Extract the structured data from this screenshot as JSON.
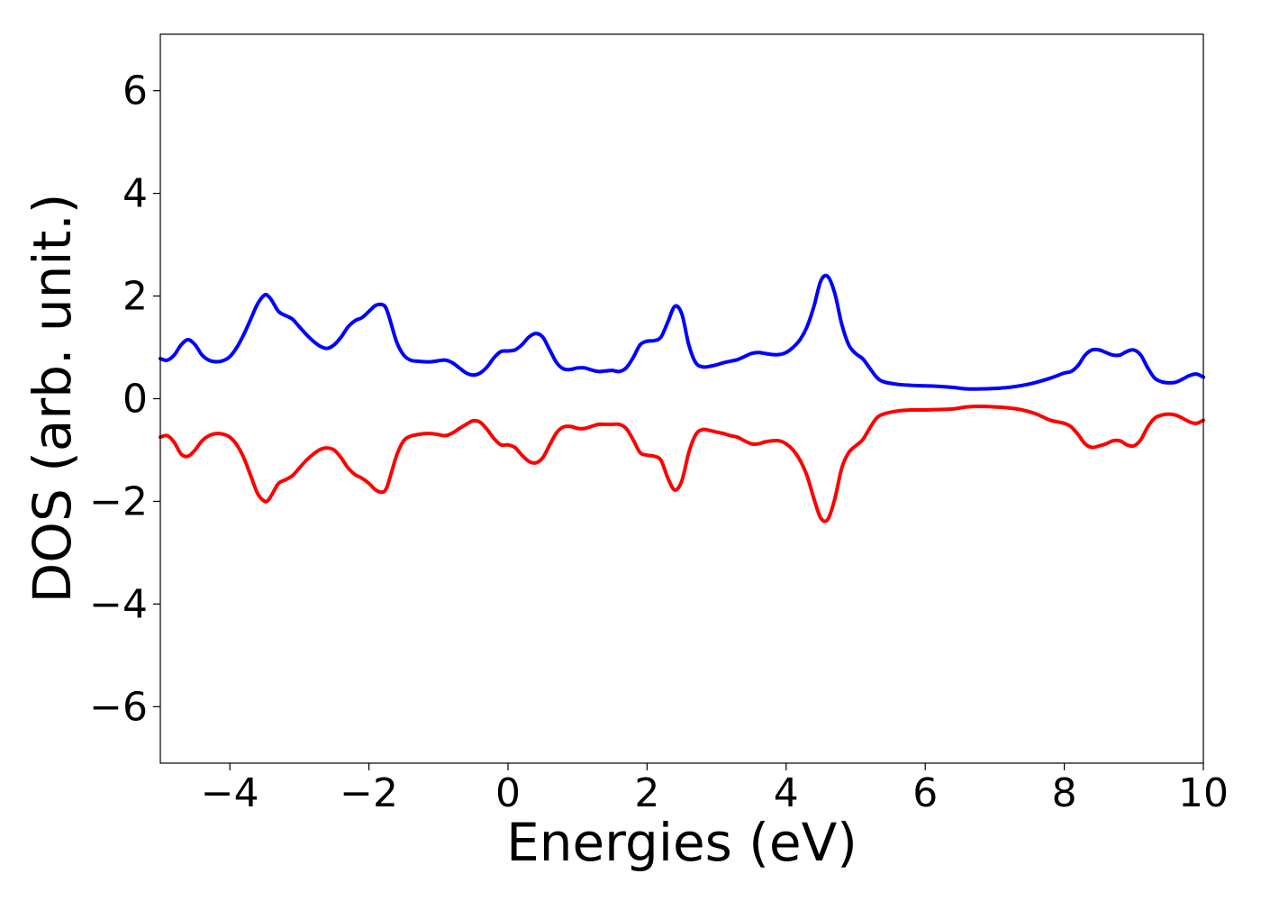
{
  "chart_data": {
    "type": "line",
    "title": "",
    "xlabel": "Energies (eV)",
    "ylabel": "DOS (arb. unit.)",
    "xlim": [
      -5,
      10
    ],
    "ylim": [
      -7.1,
      7.1
    ],
    "x_ticks": [
      -4,
      -2,
      0,
      2,
      4,
      6,
      8,
      10
    ],
    "x_tick_labels": [
      "−4",
      "−2",
      "0",
      "2",
      "4",
      "6",
      "8",
      "10"
    ],
    "y_ticks": [
      -6,
      -4,
      -2,
      0,
      2,
      4,
      6
    ],
    "y_tick_labels": [
      "−6",
      "−4",
      "−2",
      "0",
      "2",
      "4",
      "6"
    ],
    "grid": false,
    "legend": "none",
    "series": [
      {
        "color": "#0000ff",
        "x": [
          -5.0,
          -4.9,
          -4.8,
          -4.7,
          -4.6,
          -4.5,
          -4.4,
          -4.3,
          -4.2,
          -4.1,
          -4.0,
          -3.9,
          -3.8,
          -3.7,
          -3.6,
          -3.5,
          -3.45,
          -3.4,
          -3.3,
          -3.2,
          -3.1,
          -3.0,
          -2.9,
          -2.8,
          -2.7,
          -2.6,
          -2.5,
          -2.4,
          -2.3,
          -2.2,
          -2.1,
          -2.0,
          -1.9,
          -1.8,
          -1.75,
          -1.7,
          -1.6,
          -1.5,
          -1.4,
          -1.3,
          -1.2,
          -1.1,
          -1.0,
          -0.9,
          -0.8,
          -0.7,
          -0.6,
          -0.5,
          -0.4,
          -0.3,
          -0.2,
          -0.1,
          0.0,
          0.1,
          0.2,
          0.3,
          0.4,
          0.5,
          0.6,
          0.7,
          0.8,
          0.9,
          1.0,
          1.1,
          1.2,
          1.3,
          1.4,
          1.5,
          1.6,
          1.7,
          1.8,
          1.9,
          2.0,
          2.1,
          2.2,
          2.3,
          2.4,
          2.5,
          2.6,
          2.7,
          2.8,
          2.9,
          3.0,
          3.1,
          3.2,
          3.3,
          3.4,
          3.5,
          3.6,
          3.7,
          3.8,
          3.9,
          4.0,
          4.1,
          4.2,
          4.3,
          4.4,
          4.5,
          4.6,
          4.7,
          4.8,
          4.9,
          5.0,
          5.1,
          5.2,
          5.3,
          5.4,
          5.6,
          5.8,
          6.0,
          6.2,
          6.4,
          6.6,
          6.8,
          7.0,
          7.2,
          7.4,
          7.6,
          7.8,
          8.0,
          8.1,
          8.2,
          8.3,
          8.4,
          8.5,
          8.6,
          8.7,
          8.8,
          8.9,
          9.0,
          9.1,
          9.2,
          9.3,
          9.4,
          9.5,
          9.6,
          9.7,
          9.8,
          9.9,
          10.0
        ],
        "y": [
          0.78,
          0.75,
          0.85,
          1.05,
          1.15,
          1.05,
          0.85,
          0.75,
          0.72,
          0.74,
          0.82,
          1.0,
          1.25,
          1.55,
          1.85,
          2.02,
          2.0,
          1.92,
          1.7,
          1.62,
          1.55,
          1.4,
          1.25,
          1.12,
          1.02,
          0.98,
          1.05,
          1.2,
          1.4,
          1.52,
          1.58,
          1.7,
          1.82,
          1.83,
          1.75,
          1.55,
          1.1,
          0.85,
          0.75,
          0.73,
          0.72,
          0.72,
          0.74,
          0.75,
          0.7,
          0.6,
          0.5,
          0.46,
          0.5,
          0.62,
          0.8,
          0.92,
          0.93,
          0.95,
          1.05,
          1.2,
          1.27,
          1.2,
          0.95,
          0.7,
          0.58,
          0.57,
          0.6,
          0.6,
          0.56,
          0.53,
          0.54,
          0.55,
          0.53,
          0.6,
          0.8,
          1.05,
          1.12,
          1.13,
          1.2,
          1.5,
          1.8,
          1.65,
          1.05,
          0.7,
          0.62,
          0.63,
          0.66,
          0.7,
          0.73,
          0.76,
          0.82,
          0.88,
          0.9,
          0.88,
          0.86,
          0.86,
          0.9,
          1.0,
          1.15,
          1.4,
          1.8,
          2.3,
          2.38,
          2.05,
          1.45,
          1.05,
          0.88,
          0.78,
          0.6,
          0.42,
          0.33,
          0.28,
          0.26,
          0.25,
          0.24,
          0.22,
          0.19,
          0.19,
          0.2,
          0.22,
          0.26,
          0.32,
          0.4,
          0.5,
          0.53,
          0.65,
          0.85,
          0.95,
          0.95,
          0.9,
          0.85,
          0.85,
          0.92,
          0.95,
          0.85,
          0.6,
          0.4,
          0.33,
          0.31,
          0.32,
          0.38,
          0.45,
          0.48,
          0.42
        ]
      },
      {
        "color": "#ff0000",
        "x": [
          -5.0,
          -4.9,
          -4.8,
          -4.7,
          -4.6,
          -4.5,
          -4.4,
          -4.3,
          -4.2,
          -4.1,
          -4.0,
          -3.9,
          -3.8,
          -3.7,
          -3.6,
          -3.5,
          -3.45,
          -3.4,
          -3.3,
          -3.2,
          -3.1,
          -3.0,
          -2.9,
          -2.8,
          -2.7,
          -2.6,
          -2.5,
          -2.4,
          -2.3,
          -2.2,
          -2.1,
          -2.0,
          -1.9,
          -1.8,
          -1.75,
          -1.7,
          -1.6,
          -1.5,
          -1.4,
          -1.3,
          -1.2,
          -1.1,
          -1.0,
          -0.9,
          -0.8,
          -0.7,
          -0.6,
          -0.5,
          -0.4,
          -0.3,
          -0.2,
          -0.1,
          0.0,
          0.1,
          0.2,
          0.3,
          0.4,
          0.5,
          0.6,
          0.7,
          0.8,
          0.9,
          1.0,
          1.1,
          1.2,
          1.3,
          1.4,
          1.5,
          1.6,
          1.7,
          1.8,
          1.9,
          2.0,
          2.1,
          2.2,
          2.3,
          2.4,
          2.5,
          2.6,
          2.7,
          2.8,
          2.9,
          3.0,
          3.1,
          3.2,
          3.3,
          3.4,
          3.5,
          3.6,
          3.7,
          3.8,
          3.9,
          4.0,
          4.1,
          4.2,
          4.3,
          4.4,
          4.5,
          4.6,
          4.7,
          4.8,
          4.9,
          5.0,
          5.1,
          5.2,
          5.3,
          5.4,
          5.6,
          5.8,
          6.0,
          6.2,
          6.4,
          6.6,
          6.8,
          7.0,
          7.2,
          7.4,
          7.6,
          7.8,
          8.0,
          8.1,
          8.2,
          8.3,
          8.4,
          8.5,
          8.6,
          8.7,
          8.8,
          8.9,
          9.0,
          9.1,
          9.2,
          9.3,
          9.4,
          9.5,
          9.6,
          9.7,
          9.8,
          9.9,
          10.0
        ],
        "y": [
          -0.75,
          -0.72,
          -0.85,
          -1.08,
          -1.12,
          -1.0,
          -0.82,
          -0.72,
          -0.68,
          -0.69,
          -0.75,
          -0.9,
          -1.15,
          -1.5,
          -1.85,
          -2.0,
          -1.98,
          -1.88,
          -1.65,
          -1.58,
          -1.5,
          -1.35,
          -1.2,
          -1.08,
          -0.99,
          -0.96,
          -1.0,
          -1.15,
          -1.35,
          -1.48,
          -1.55,
          -1.65,
          -1.78,
          -1.82,
          -1.75,
          -1.55,
          -1.1,
          -0.82,
          -0.73,
          -0.7,
          -0.68,
          -0.68,
          -0.7,
          -0.72,
          -0.67,
          -0.58,
          -0.5,
          -0.43,
          -0.46,
          -0.6,
          -0.78,
          -0.9,
          -0.9,
          -0.95,
          -1.1,
          -1.22,
          -1.25,
          -1.15,
          -0.9,
          -0.66,
          -0.55,
          -0.54,
          -0.58,
          -0.58,
          -0.54,
          -0.5,
          -0.5,
          -0.5,
          -0.5,
          -0.58,
          -0.8,
          -1.05,
          -1.1,
          -1.12,
          -1.2,
          -1.55,
          -1.78,
          -1.6,
          -1.05,
          -0.7,
          -0.6,
          -0.62,
          -0.65,
          -0.68,
          -0.72,
          -0.75,
          -0.82,
          -0.88,
          -0.88,
          -0.84,
          -0.82,
          -0.82,
          -0.88,
          -1.0,
          -1.2,
          -1.5,
          -1.95,
          -2.33,
          -2.35,
          -1.95,
          -1.35,
          -1.05,
          -0.92,
          -0.8,
          -0.58,
          -0.38,
          -0.3,
          -0.24,
          -0.22,
          -0.22,
          -0.21,
          -0.2,
          -0.16,
          -0.15,
          -0.16,
          -0.18,
          -0.22,
          -0.3,
          -0.42,
          -0.48,
          -0.55,
          -0.7,
          -0.88,
          -0.95,
          -0.92,
          -0.88,
          -0.82,
          -0.82,
          -0.9,
          -0.92,
          -0.8,
          -0.55,
          -0.38,
          -0.32,
          -0.3,
          -0.32,
          -0.38,
          -0.45,
          -0.48,
          -0.42
        ]
      }
    ]
  }
}
